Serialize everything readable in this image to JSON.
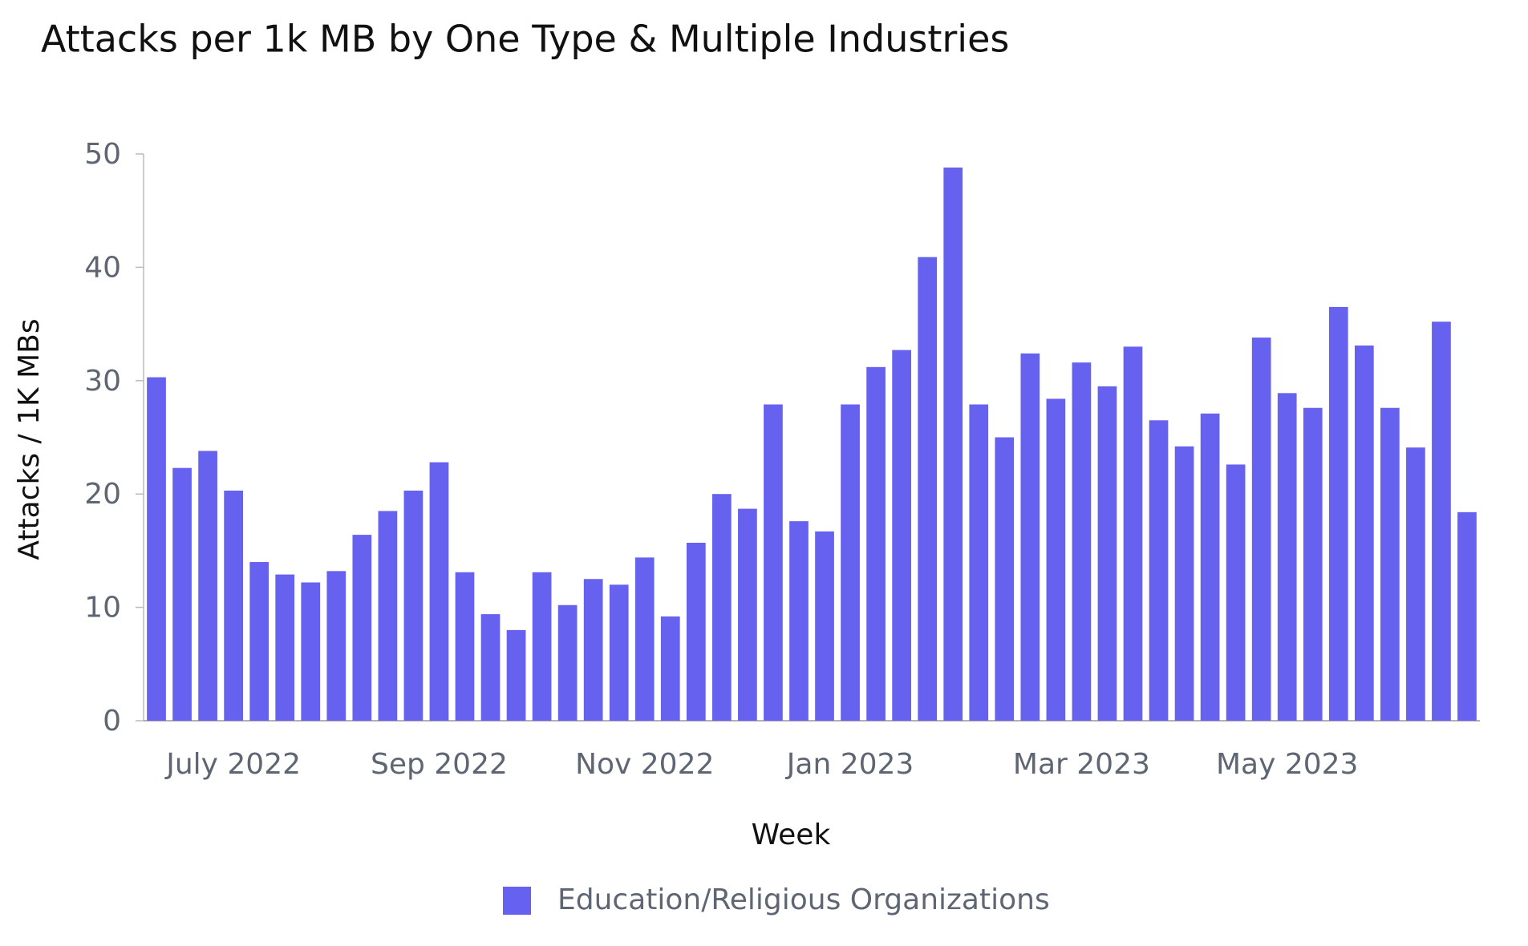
{
  "chart_data": {
    "type": "bar",
    "title": "Attacks per 1k MB by One Type & Multiple Industries",
    "x_label": "Week",
    "y_label": "Attacks / 1K MBs",
    "categories": [
      null,
      null,
      null,
      "July 2022",
      null,
      null,
      null,
      null,
      null,
      null,
      null,
      "Sep 2022",
      null,
      null,
      null,
      null,
      null,
      null,
      null,
      "Nov 2022",
      null,
      null,
      null,
      null,
      null,
      null,
      null,
      "Jan 2023",
      null,
      null,
      null,
      null,
      null,
      null,
      null,
      null,
      "Mar 2023",
      null,
      null,
      null,
      null,
      null,
      null,
      null,
      "May 2023",
      null,
      null,
      null,
      null,
      null,
      null,
      null
    ],
    "series": [
      {
        "name": "Education/Religious Organizations",
        "color": "#6761f0",
        "values": [
          30.3,
          22.3,
          23.8,
          20.3,
          14.0,
          12.9,
          12.2,
          13.2,
          16.4,
          18.5,
          20.3,
          22.8,
          13.1,
          9.4,
          8.0,
          13.1,
          10.2,
          12.5,
          12.0,
          14.4,
          9.2,
          15.7,
          20.0,
          18.7,
          27.9,
          17.6,
          16.7,
          27.9,
          31.2,
          32.7,
          40.9,
          48.8,
          27.9,
          25.0,
          32.4,
          28.4,
          31.6,
          29.5,
          33.0,
          26.5,
          24.2,
          27.1,
          22.6,
          33.8,
          28.9,
          27.6,
          36.5,
          33.1,
          27.6,
          24.1,
          35.2,
          18.4
        ]
      }
    ],
    "ylim": [
      0,
      50
    ],
    "yticks": [
      0,
      10,
      20,
      30,
      40,
      50
    ],
    "grid": false
  }
}
